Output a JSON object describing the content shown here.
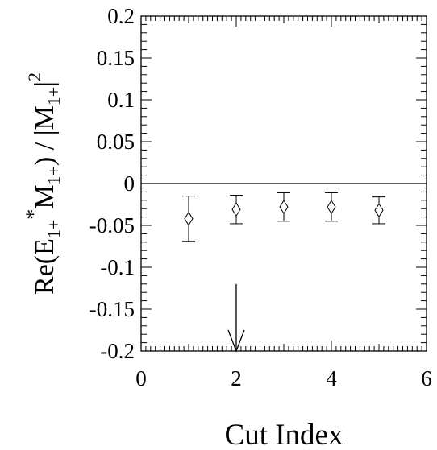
{
  "chart_data": {
    "type": "scatter",
    "title": "",
    "xlabel": "Cut Index",
    "ylabel": {
      "prefix": "Re(E",
      "sub1": "1+",
      "star": "*",
      "mid": "M",
      "sub2": "1+",
      "close": ") / |M",
      "sub3": "1+",
      "bar": "|",
      "power": "2"
    },
    "xlim": [
      0,
      6
    ],
    "ylim": [
      -0.2,
      0.2
    ],
    "x_ticks": [
      "0",
      "2",
      "4",
      "6"
    ],
    "y_ticks": [
      "0.2",
      "0.15",
      "0.1",
      "0.05",
      "0",
      "-0.05",
      "-0.1",
      "-0.15",
      "-0.2"
    ],
    "series": [
      {
        "marker": "diamond-open",
        "x": [
          1,
          2,
          3,
          4,
          5
        ],
        "y": [
          -0.042,
          -0.031,
          -0.028,
          -0.028,
          -0.032
        ],
        "err": [
          0.027,
          0.017,
          0.017,
          0.017,
          0.016
        ]
      }
    ],
    "reference_line_y": 0,
    "arrow": {
      "x": 2,
      "y_top": -0.12,
      "y_bottom": -0.2
    },
    "grid": false,
    "legend": "none"
  }
}
